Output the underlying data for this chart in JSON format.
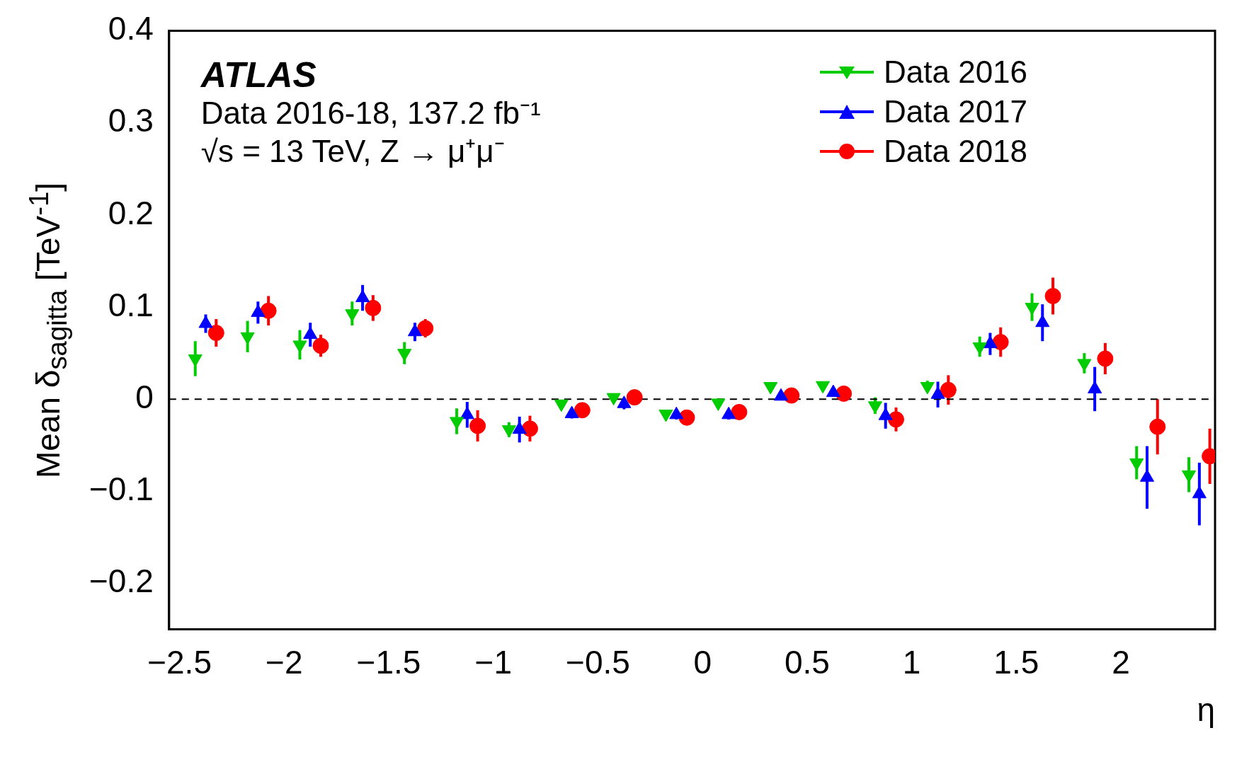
{
  "chart_data": {
    "type": "scatter",
    "xlabel": "η",
    "ylabel": "Mean δ$_{sagitta}$ [TeV$^{-1}$]",
    "annotations": [
      "ATLAS",
      "Data 2016-18, 137.2 fb⁻¹",
      "√s = 13 TeV, Z → μ⁺μ⁻"
    ],
    "xlim": [
      -2.55,
      2.45
    ],
    "ylim": [
      -0.25,
      0.4
    ],
    "xticks": [
      {
        "value": -2.5,
        "label": "−2.5"
      },
      {
        "value": -2,
        "label": "−2"
      },
      {
        "value": -1.5,
        "label": "−1.5"
      },
      {
        "value": -1,
        "label": "−1"
      },
      {
        "value": -0.5,
        "label": "−0.5"
      },
      0,
      0.5,
      1,
      1.5,
      2
    ],
    "yticks": [
      {
        "value": -0.2,
        "label": "−0.2"
      },
      {
        "value": -0.1,
        "label": "−0.1"
      },
      0,
      0.1,
      0.2,
      0.3,
      0.4
    ],
    "grid": false,
    "legend": "top right",
    "ref_lines": [
      {
        "axis": "y",
        "value": 0,
        "color": "#000000",
        "line_style": "dashed"
      }
    ],
    "series": [
      {
        "name": "Data 2016",
        "color": "#00cc00",
        "marker": "triangle",
        "x": [
          -2.425,
          -2.175,
          -1.925,
          -1.675,
          -1.425,
          -1.175,
          -0.925,
          -0.675,
          -0.425,
          -0.175,
          0.075,
          0.325,
          0.575,
          0.825,
          1.075,
          1.325,
          1.575,
          1.825,
          2.075,
          2.325
        ],
        "values": [
          0.044,
          0.068,
          0.059,
          0.093,
          0.05,
          -0.024,
          -0.033,
          -0.005,
          0.002,
          -0.016,
          -0.004,
          0.014,
          0.015,
          -0.007,
          0.014,
          0.057,
          0.1,
          0.039,
          -0.069,
          -0.082
        ],
        "errors": [
          0.019,
          0.017,
          0.016,
          0.013,
          0.012,
          0.014,
          0.008,
          0.004,
          0.004,
          0.004,
          0.005,
          0.003,
          0.003,
          0.009,
          0.006,
          0.011,
          0.015,
          0.011,
          0.018,
          0.019
        ]
      },
      {
        "name": "Data 2017",
        "color": "#0000ff",
        "marker": "triangle",
        "x": [
          -2.375,
          -2.125,
          -1.875,
          -1.625,
          -1.375,
          -1.125,
          -0.875,
          -0.625,
          -0.375,
          -0.125,
          0.125,
          0.375,
          0.625,
          0.875,
          1.125,
          1.375,
          1.625,
          1.875,
          2.125,
          2.375
        ],
        "values": [
          0.082,
          0.094,
          0.07,
          0.11,
          0.073,
          -0.017,
          -0.033,
          -0.016,
          -0.005,
          -0.017,
          -0.017,
          0.003,
          0.007,
          -0.018,
          0.005,
          0.06,
          0.083,
          0.011,
          -0.085,
          -0.103
        ],
        "errors": [
          0.01,
          0.012,
          0.013,
          0.014,
          0.01,
          0.014,
          0.014,
          0.005,
          0.006,
          0.005,
          0.005,
          0.003,
          0.004,
          0.014,
          0.014,
          0.012,
          0.02,
          0.024,
          0.034,
          0.034
        ]
      },
      {
        "name": "Data 2018",
        "color": "#ff0000",
        "marker": "circle",
        "x": [
          -2.325,
          -2.075,
          -1.825,
          -1.575,
          -1.325,
          -1.075,
          -0.825,
          -0.575,
          -0.325,
          -0.075,
          0.175,
          0.425,
          0.675,
          0.925,
          1.175,
          1.425,
          1.675,
          1.925,
          2.175,
          2.425
        ],
        "values": [
          0.072,
          0.096,
          0.058,
          0.099,
          0.077,
          -0.029,
          -0.032,
          -0.012,
          0.002,
          -0.02,
          -0.014,
          0.004,
          0.006,
          -0.022,
          0.01,
          0.062,
          0.112,
          0.044,
          -0.03,
          -0.062
        ],
        "errors": [
          0.015,
          0.016,
          0.012,
          0.014,
          0.01,
          0.017,
          0.014,
          0.006,
          0.006,
          0.005,
          0.005,
          0.003,
          0.003,
          0.013,
          0.016,
          0.016,
          0.02,
          0.017,
          0.03,
          0.03
        ]
      }
    ]
  }
}
